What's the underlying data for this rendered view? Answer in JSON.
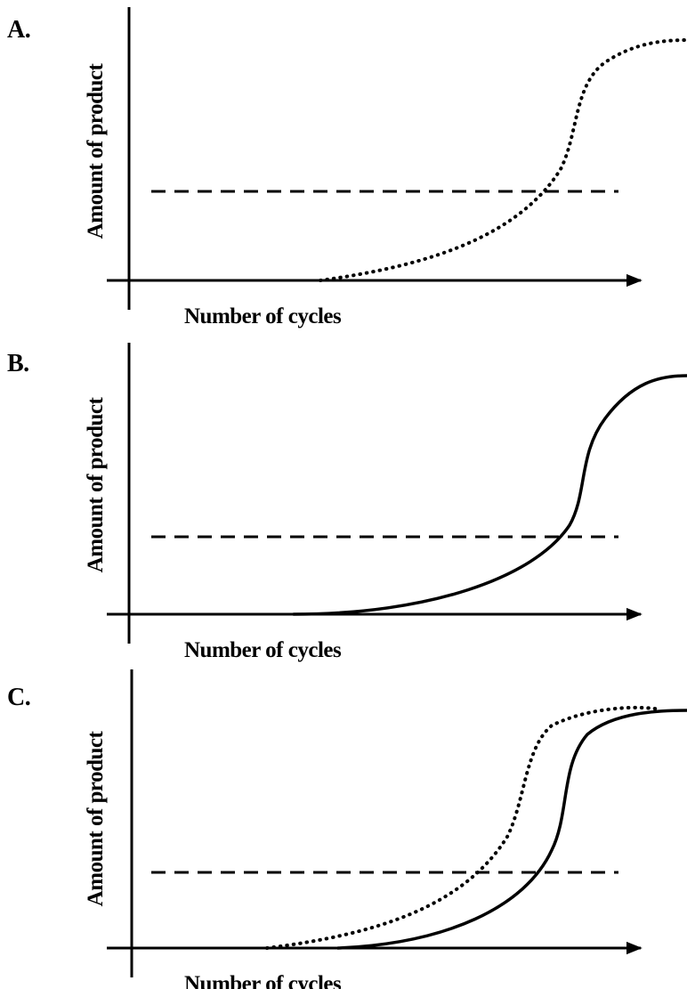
{
  "panels": [
    {
      "label": "A.",
      "y_label": "Amount of product",
      "x_label": "Number of cycles"
    },
    {
      "label": "B.",
      "y_label": "Amount of product",
      "x_label": "Number of cycles"
    },
    {
      "label": "C.",
      "y_label": "Amount of product",
      "x_label": "Number of cycles"
    }
  ]
}
